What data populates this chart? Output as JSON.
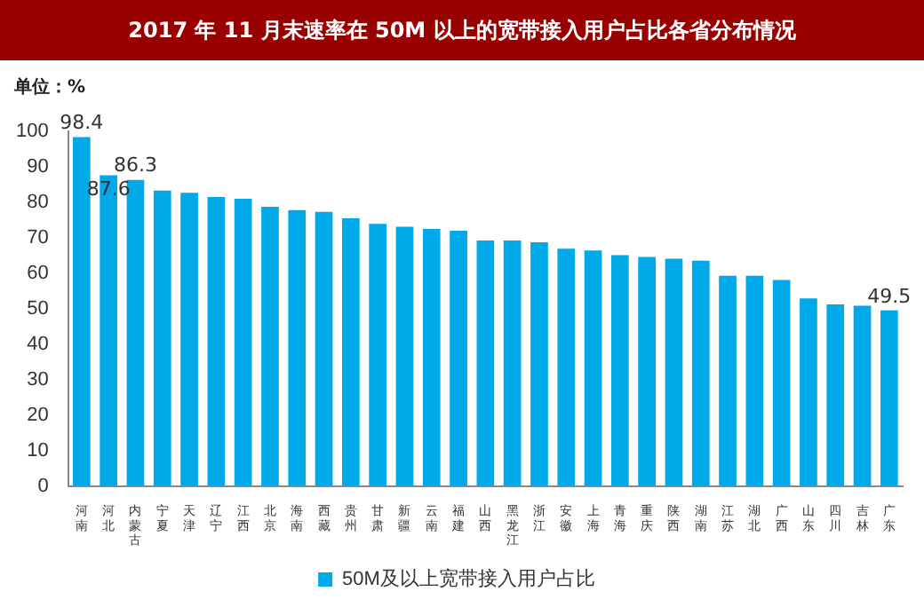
{
  "chart_data": {
    "type": "bar",
    "title": "2017 年 11 月末速率在 50M 以上的宽带接入用户占比各省分布情况",
    "categories": [
      "河南",
      "河北",
      "内蒙古",
      "宁夏",
      "天津",
      "辽宁",
      "江西",
      "北京",
      "海南",
      "西藏",
      "贵州",
      "甘肃",
      "新疆",
      "云南",
      "福建",
      "山西",
      "黑龙江",
      "浙江",
      "安徽",
      "上海",
      "青海",
      "重庆",
      "陕西",
      "湖南",
      "江苏",
      "湖北",
      "广西",
      "山东",
      "四川",
      "吉林",
      "广东"
    ],
    "series": [
      {
        "name": "50M及以上宽带接入用户占比",
        "color": "#00a9e8",
        "values": [
          98.4,
          87.6,
          86.3,
          83.3,
          82.7,
          81.5,
          81.0,
          78.7,
          77.8,
          77.3,
          75.5,
          73.9,
          73.1,
          72.5,
          72.0,
          69.2,
          69.2,
          68.7,
          66.9,
          66.4,
          65.1,
          64.6,
          64.1,
          63.5,
          59.3,
          59.3,
          58.1,
          52.9,
          51.2,
          50.8,
          49.5
        ],
        "value_labels": [
          "98.4",
          "87.6",
          "86.3",
          null,
          null,
          null,
          null,
          null,
          null,
          null,
          null,
          null,
          null,
          null,
          null,
          null,
          null,
          null,
          null,
          null,
          null,
          null,
          null,
          null,
          null,
          null,
          null,
          null,
          null,
          null,
          "49.5"
        ]
      }
    ],
    "ylim": [
      0,
      100
    ],
    "yticks": [
      0,
      10,
      20,
      30,
      40,
      50,
      60,
      70,
      80,
      90,
      100
    ],
    "annotations": [
      "单位：%"
    ],
    "grid": false,
    "legend": "bottom"
  }
}
